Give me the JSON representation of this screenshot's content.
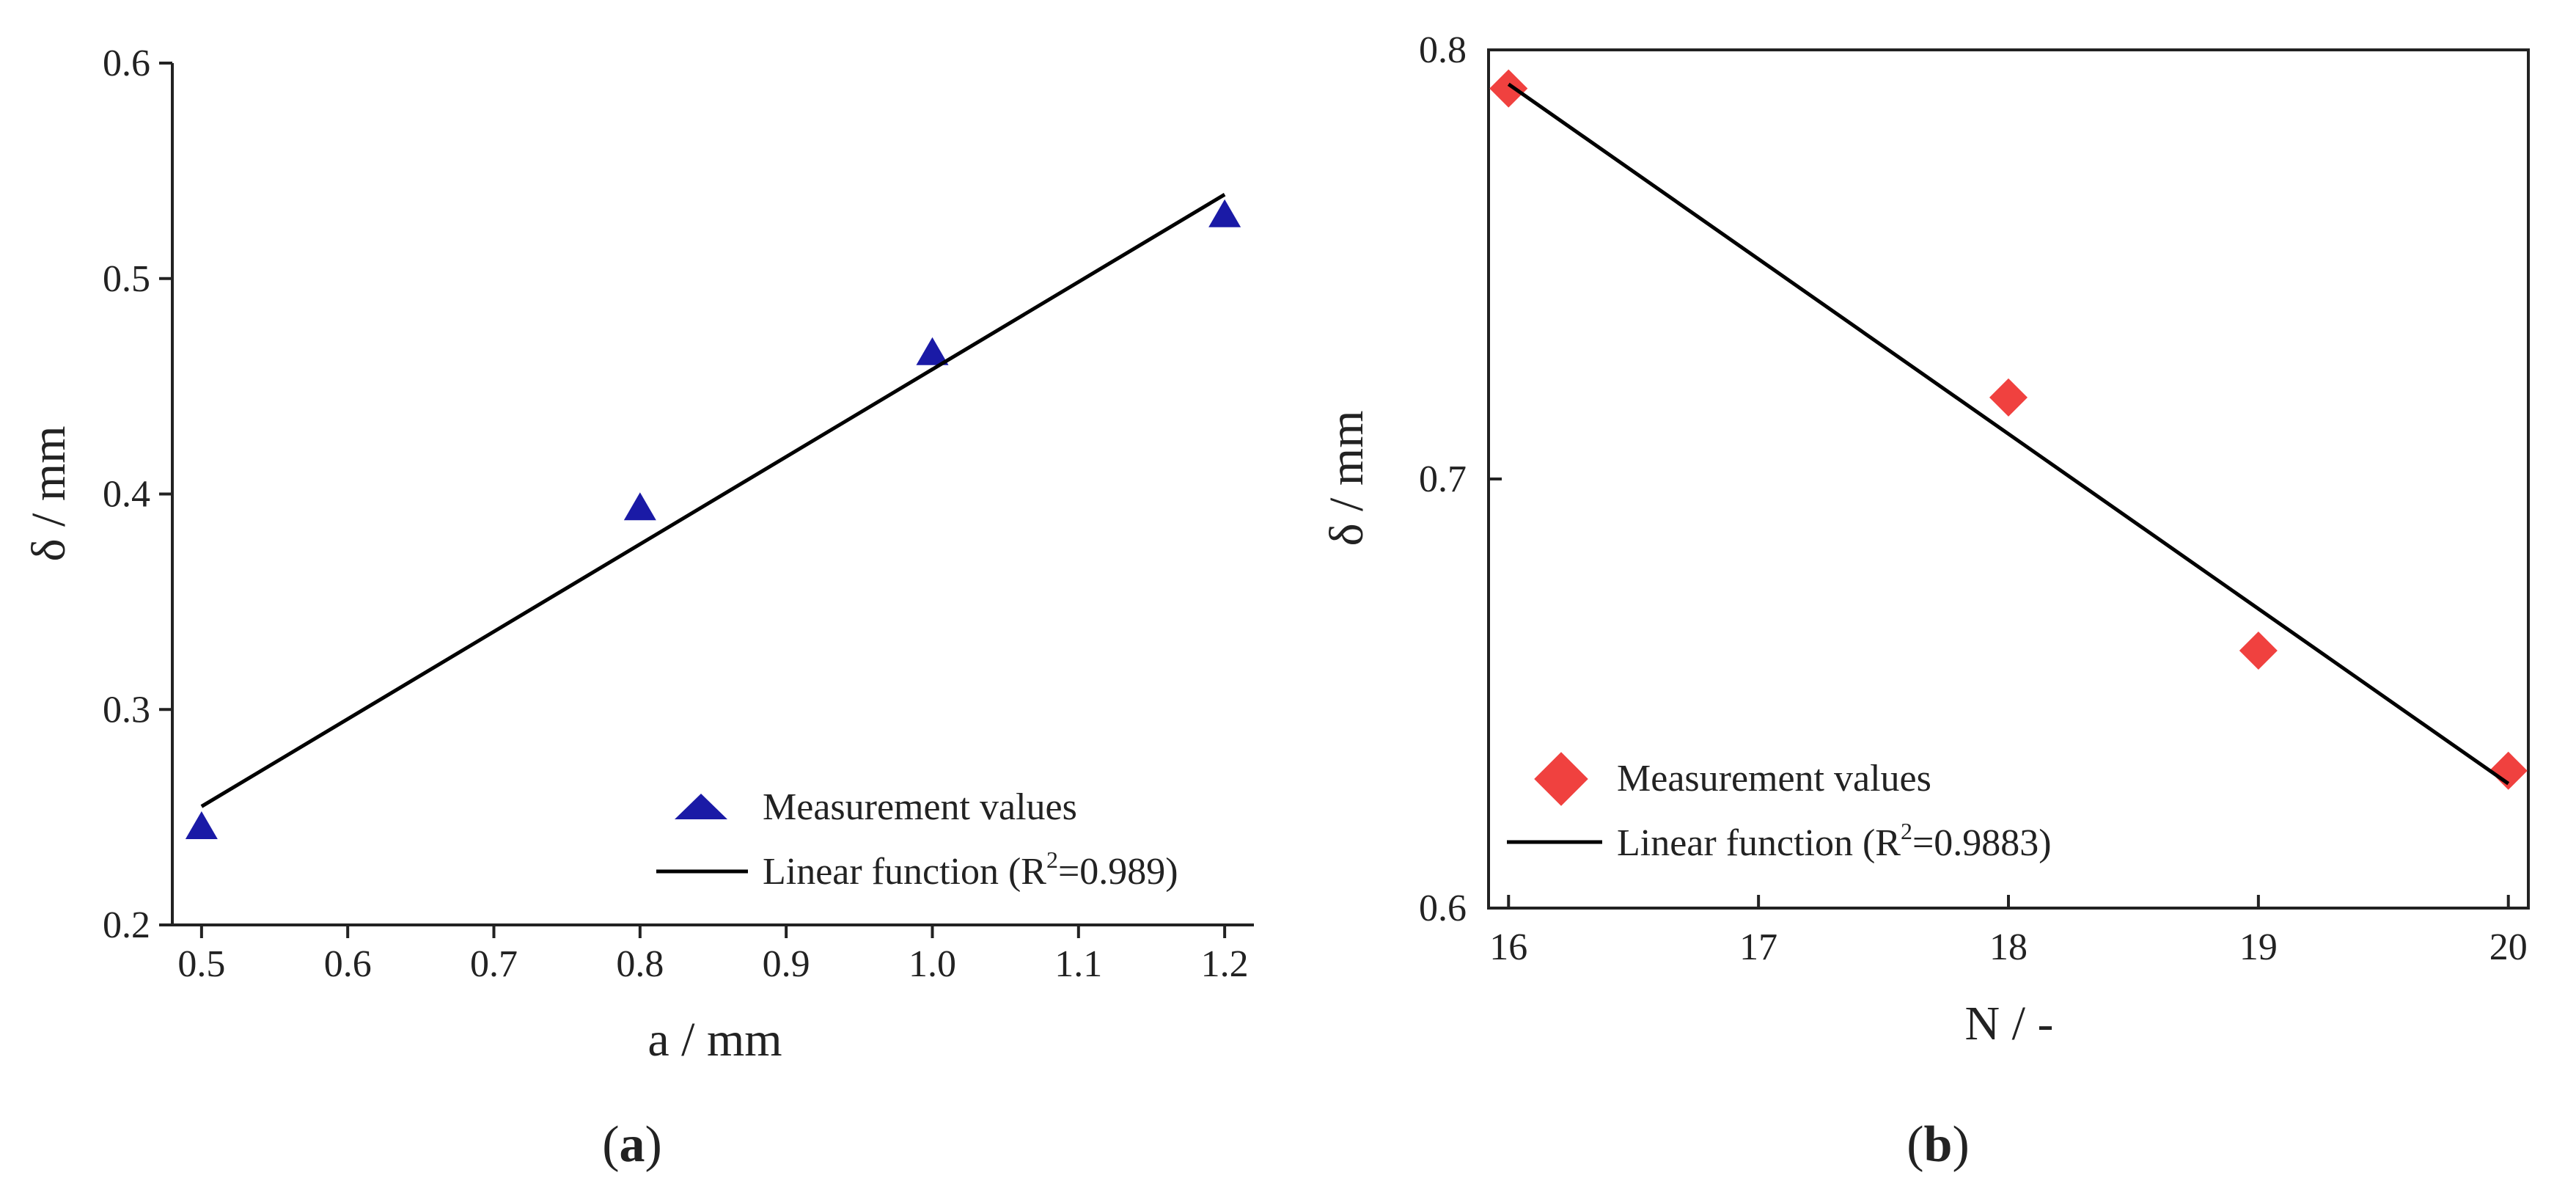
{
  "chart_data": [
    {
      "type": "scatter",
      "panel_label": "a",
      "xlabel": "a / mm",
      "ylabel": "δ / mm",
      "xlim": [
        0.48,
        1.22
      ],
      "ylim": [
        0.2,
        0.6
      ],
      "x_ticks": [
        "0.5",
        "0.6",
        "0.7",
        "0.8",
        "0.9",
        "1.0",
        "1.1",
        "1.2"
      ],
      "y_ticks": [
        "0.2",
        "0.3",
        "0.4",
        "0.5",
        "0.6"
      ],
      "grid": false,
      "legend_position": "bottom-right",
      "series": [
        {
          "name": "Measurement values",
          "marker": "triangle",
          "color": "#1a1aa6",
          "x": [
            0.5,
            0.8,
            1.0,
            1.2
          ],
          "y": [
            0.245,
            0.393,
            0.465,
            0.529
          ]
        },
        {
          "name": "Linear function (R",
          "name_sup": "2",
          "name_suffix": "=0.989)",
          "kind": "line",
          "color": "#000000",
          "x": [
            0.5,
            1.2
          ],
          "y": [
            0.255,
            0.539
          ]
        }
      ]
    },
    {
      "type": "scatter",
      "panel_label": "b",
      "xlabel": "N / -",
      "ylabel": "δ / mm",
      "xlim": [
        15.92,
        20.08
      ],
      "ylim": [
        0.6,
        0.8
      ],
      "x_ticks": [
        "16",
        "17",
        "18",
        "19",
        "20"
      ],
      "y_ticks": [
        "0.6",
        "0.7",
        "0.8"
      ],
      "grid": false,
      "legend_position": "bottom-left",
      "series": [
        {
          "name": "Measurement values",
          "marker": "diamond",
          "color": "#f0413f",
          "x": [
            16,
            18,
            19,
            20
          ],
          "y": [
            0.791,
            0.719,
            0.66,
            0.632
          ]
        },
        {
          "name": "Linear function (R",
          "name_sup": "2",
          "name_suffix": "=0.9883)",
          "kind": "line",
          "color": "#000000",
          "x": [
            16,
            20
          ],
          "y": [
            0.792,
            0.629
          ]
        }
      ]
    }
  ]
}
